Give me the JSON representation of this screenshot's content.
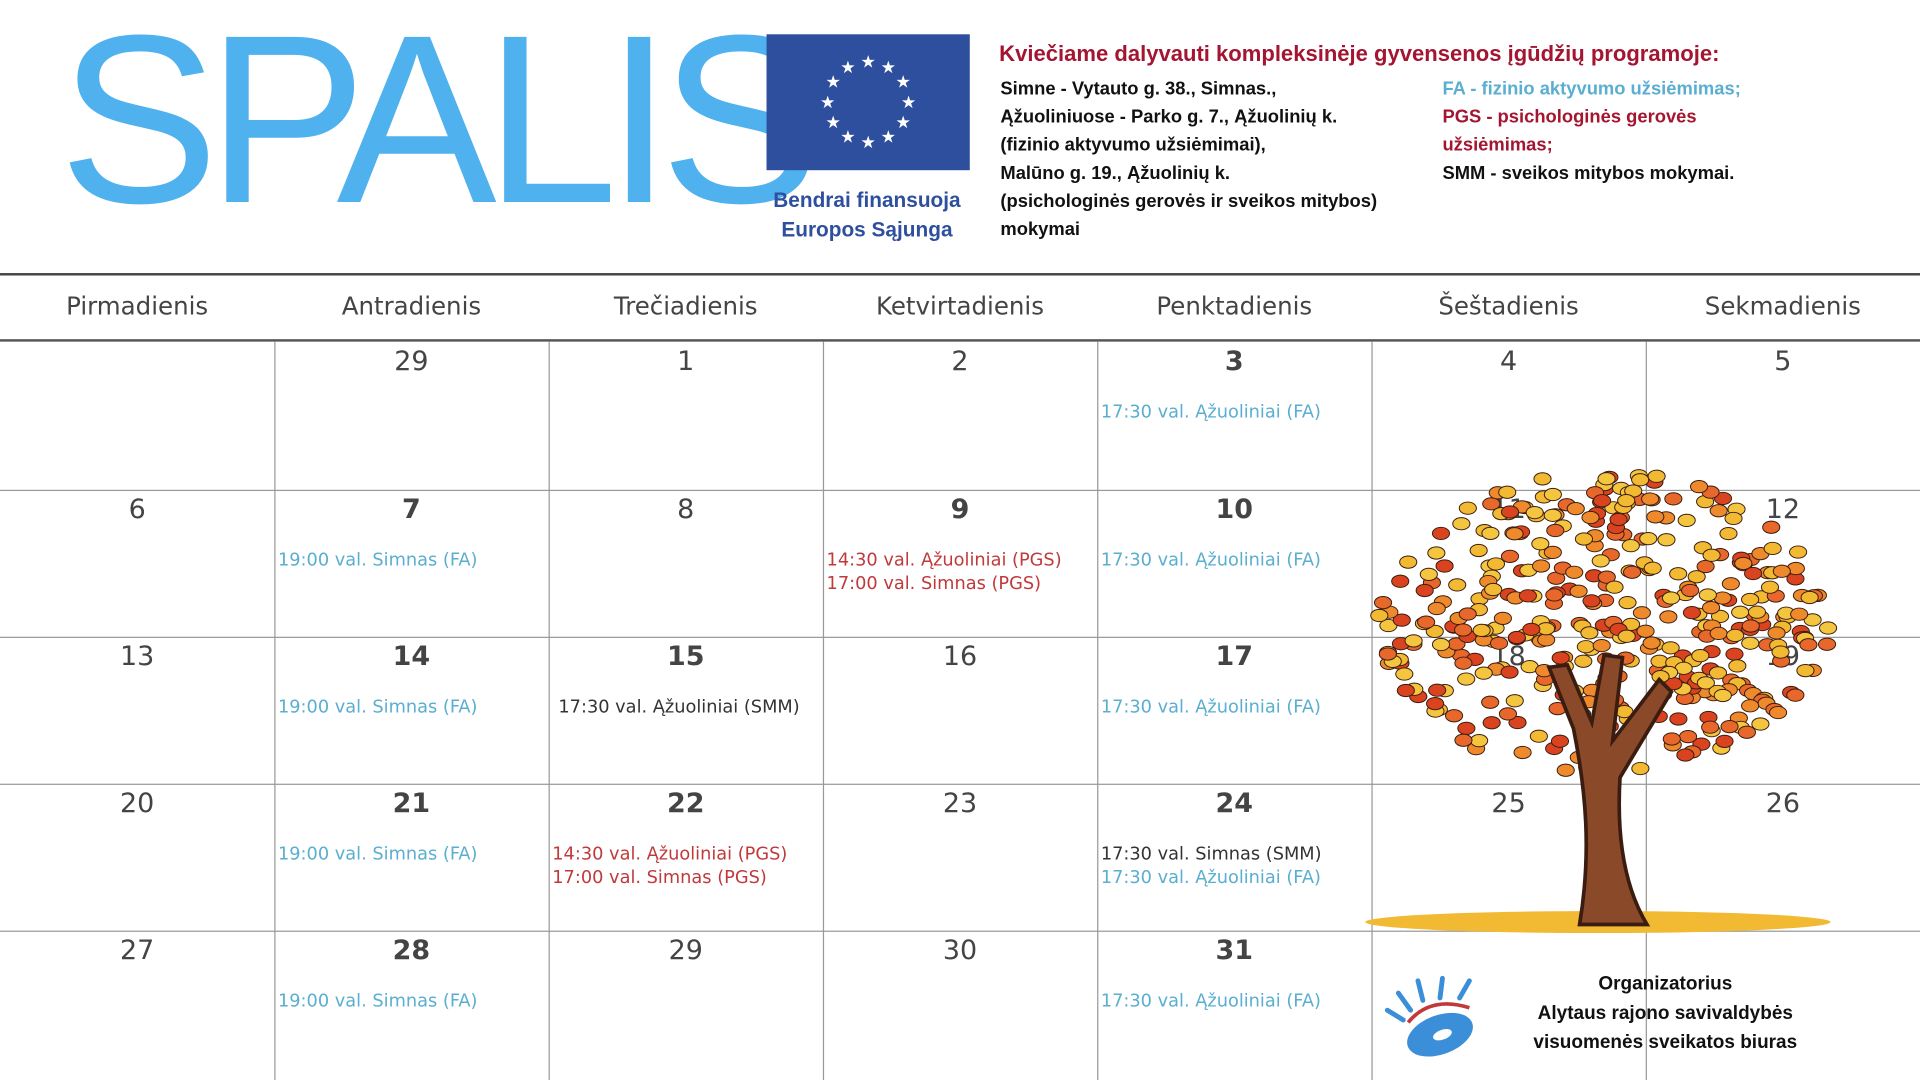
{
  "month": "SPALIS",
  "eu": {
    "cofinance_line1": "Bendrai finansuoja",
    "cofinance_line2": "Europos Sąjunga",
    "flag": "eu-flag",
    "flag_color": "#2e4f9e"
  },
  "header": {
    "invite": "Kviečiame dalyvauti kompleksinėje gyvensenos įgūdžių programoje:",
    "address_lines": [
      "Simne - Vytauto g. 38.,  Simnas.,",
      "Ąžuoliniuose - Parko g. 7., Ąžuolinių k.",
      "(fizinio aktyvumo užsiėmimai),",
      "Malūno g. 19., Ąžuolinių k.",
      "(psichologinės gerovės ir sveikos mitybos)",
      "mokymai"
    ],
    "legend": [
      "FA - fizinio aktyvumo užsiėmimas;",
      "PGS - psichologinės gerovės užsiėmimas;",
      "SMM - sveikos mitybos mokymai."
    ]
  },
  "colors": {
    "title": "#4fb1ee",
    "fa": "#5aaed0",
    "pgs": "#c0393b",
    "invite": "#a31531"
  },
  "weekdays": [
    "Pirmadienis",
    "Antradienis",
    "Trečiadienis",
    "Ketvirtadienis",
    "Penktadienis",
    "Šeštadienis",
    "Sekmadienis"
  ],
  "weeks": [
    [
      "",
      "29",
      "1",
      "2",
      "3",
      "4",
      "5"
    ],
    [
      "6",
      "7",
      "8",
      "9",
      "10",
      "11",
      "12"
    ],
    [
      "13",
      "14",
      "15",
      "16",
      "17",
      "18",
      "19"
    ],
    [
      "20",
      "21",
      "22",
      "23",
      "24",
      "25",
      "26"
    ],
    [
      "27",
      "28",
      "29",
      "30",
      "31",
      "",
      ""
    ]
  ],
  "events": [
    {
      "week": 0,
      "col": 4,
      "items": [
        {
          "t": "17:30 val. Ąžuoliniai (FA)",
          "k": "fa"
        }
      ]
    },
    {
      "week": 1,
      "col": 1,
      "items": [
        {
          "t": "19:00 val. Simnas (FA)",
          "k": "fa"
        }
      ]
    },
    {
      "week": 1,
      "col": 3,
      "items": [
        {
          "t": "14:30 val. Ąžuoliniai (PGS)",
          "k": "pgs"
        },
        {
          "t": "17:00 val. Simnas (PGS)",
          "k": "pgs"
        }
      ]
    },
    {
      "week": 1,
      "col": 4,
      "items": [
        {
          "t": "17:30 val. Ąžuoliniai (FA)",
          "k": "fa"
        }
      ]
    },
    {
      "week": 2,
      "col": 1,
      "items": [
        {
          "t": "19:00 val. Simnas (FA)",
          "k": "fa"
        }
      ]
    },
    {
      "week": 2,
      "col": 2,
      "items": [
        {
          "t": "17:30 val.  Ąžuoliniai (SMM)",
          "k": "smm"
        }
      ]
    },
    {
      "week": 2,
      "col": 4,
      "items": [
        {
          "t": "17:30 val. Ąžuoliniai (FA)",
          "k": "fa"
        }
      ]
    },
    {
      "week": 3,
      "col": 1,
      "items": [
        {
          "t": "19:00 val. Simnas (FA)",
          "k": "fa"
        }
      ]
    },
    {
      "week": 3,
      "col": 2,
      "items": [
        {
          "t": "14:30 val. Ąžuoliniai (PGS)",
          "k": "pgs"
        },
        {
          "t": "17:00 val. Simnas (PGS)",
          "k": "pgs"
        }
      ]
    },
    {
      "week": 3,
      "col": 4,
      "items": [
        {
          "t": "17:30 val.  Simnas (SMM)",
          "k": "smm"
        },
        {
          "t": "17:30 val. Ąžuoliniai (FA)",
          "k": "fa"
        }
      ]
    },
    {
      "week": 4,
      "col": 1,
      "items": [
        {
          "t": "19:00 val. Simnas (FA)",
          "k": "fa"
        }
      ]
    },
    {
      "week": 4,
      "col": 4,
      "items": [
        {
          "t": "17:30 val. Ąžuoliniai (FA)",
          "k": "fa"
        }
      ]
    }
  ],
  "organizer": {
    "label": "Organizatorius",
    "name_line1": "Alytaus rajono savivaldybės",
    "name_line2": "visuomenės sveikatos biuras"
  }
}
